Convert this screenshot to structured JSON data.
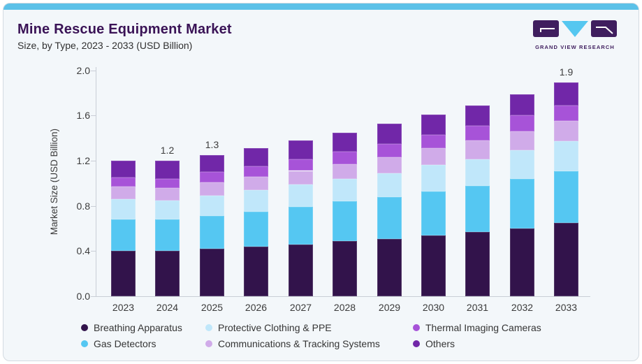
{
  "header": {
    "title": "Mine Rescue Equipment Market",
    "subtitle": "Size, by Type, 2023 - 2033 (USD Billion)",
    "logo_text": "GRAND VIEW RESEARCH"
  },
  "chart_data": {
    "type": "bar",
    "stacked": true,
    "title": "Mine Rescue Equipment Market Size, by Type, 2023 - 2033 (USD Billion)",
    "xlabel": "",
    "ylabel": "Market Size (USD Billion)",
    "ylim": [
      0,
      2.0
    ],
    "y_ticks": [
      "0.0",
      "0.4",
      "0.8",
      "1.2",
      "1.6",
      "2.0"
    ],
    "grid": false,
    "legend_position": "bottom",
    "categories": [
      "2023",
      "2024",
      "2025",
      "2026",
      "2027",
      "2028",
      "2029",
      "2030",
      "2031",
      "2032",
      "2033"
    ],
    "series": [
      {
        "name": "Breathing Apparatus",
        "color": "#32134b",
        "values": [
          0.4,
          0.4,
          0.42,
          0.44,
          0.46,
          0.49,
          0.51,
          0.54,
          0.57,
          0.6,
          0.65
        ]
      },
      {
        "name": "Gas Detectors",
        "color": "#55c7f2",
        "values": [
          0.28,
          0.28,
          0.29,
          0.31,
          0.33,
          0.35,
          0.37,
          0.39,
          0.41,
          0.44,
          0.46
        ]
      },
      {
        "name": "Protective Clothing & PPE",
        "color": "#c0e7fa",
        "values": [
          0.18,
          0.17,
          0.18,
          0.19,
          0.2,
          0.2,
          0.21,
          0.23,
          0.23,
          0.25,
          0.26
        ]
      },
      {
        "name": "Communications & Tracking Systems",
        "color": "#d0abe9",
        "values": [
          0.11,
          0.11,
          0.12,
          0.12,
          0.12,
          0.13,
          0.14,
          0.15,
          0.17,
          0.17,
          0.18
        ]
      },
      {
        "name": "Thermal Imaging Cameras",
        "color": "#a753d8",
        "values": [
          0.08,
          0.08,
          0.09,
          0.09,
          0.1,
          0.11,
          0.12,
          0.12,
          0.13,
          0.14,
          0.14
        ]
      },
      {
        "name": "Others",
        "color": "#7127a8",
        "values": [
          0.15,
          0.16,
          0.15,
          0.16,
          0.17,
          0.17,
          0.18,
          0.18,
          0.18,
          0.19,
          0.2
        ]
      }
    ],
    "totals": [
      1.2,
      1.2,
      1.25,
      1.31,
      1.38,
      1.45,
      1.53,
      1.61,
      1.69,
      1.79,
      1.89
    ],
    "totals_labels": {
      "2024": "1.2",
      "2025": "1.3",
      "2033": "1.9"
    }
  },
  "legend": {
    "items": [
      {
        "label": "Breathing Apparatus",
        "color": "#32134b"
      },
      {
        "label": "Protective Clothing & PPE",
        "color": "#c0e7fa"
      },
      {
        "label": "Thermal Imaging Cameras",
        "color": "#a753d8"
      },
      {
        "label": "Gas Detectors",
        "color": "#55c7f2"
      },
      {
        "label": "Communications & Tracking Systems",
        "color": "#d0abe9"
      },
      {
        "label": "Others",
        "color": "#7127a8"
      }
    ]
  },
  "colors": {
    "topbar": "#5cc1e8",
    "card_background": "#f3f7fa",
    "card_border": "#d4dbe1",
    "title_text": "#3a1356",
    "body_text": "#3b3b3b",
    "axis_line": "#c9ced6",
    "logo_purple": "#3f1e5e",
    "logo_blue": "#55c7f0"
  }
}
